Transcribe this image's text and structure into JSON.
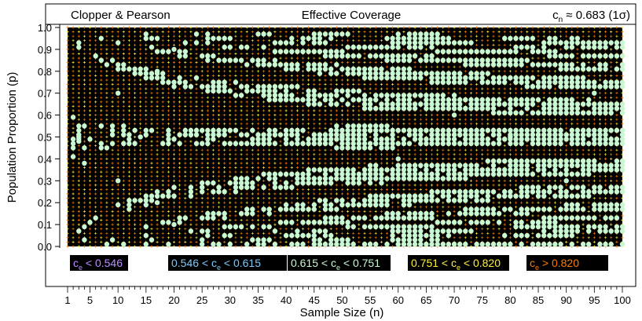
{
  "header": {
    "left": "Clopper & Pearson",
    "center": "Effective Coverage",
    "right_main": "c",
    "right_sub": "n",
    "right_tail": " ≈ 0.683 (1σ)"
  },
  "chart_data": {
    "type": "scatter",
    "title": "Effective Coverage",
    "method": "Clopper & Pearson",
    "nominal_coverage": "cn ≈ 0.683 (1σ)",
    "xlabel": "Sample Size (n)",
    "ylabel": "Population Proportion (p)",
    "xlim": [
      1,
      100
    ],
    "ylim": [
      0.0,
      1.0
    ],
    "x_ticks": [
      1,
      5,
      10,
      15,
      20,
      25,
      30,
      35,
      40,
      45,
      50,
      55,
      60,
      65,
      70,
      75,
      80,
      85,
      90,
      95,
      100
    ],
    "y_ticks": [
      "0.0",
      "0.1",
      "0.2",
      "0.3",
      "0.4",
      "0.5",
      "0.6",
      "0.7",
      "0.8",
      "0.9",
      "1.0"
    ],
    "grid": {
      "n_step": 1,
      "p_step": 0.01
    },
    "plot_background": "#000000",
    "legend_placement": "bottom",
    "legend": [
      {
        "label": "< 0.546",
        "color": "#b98cff",
        "marker": "grid point",
        "range": [
          0.0,
          0.546
        ]
      },
      {
        "label": "0.546 < ",
        "suffix": " < 0.615",
        "color": "#7fc8f5",
        "marker": "grid point",
        "range": [
          0.546,
          0.615
        ]
      },
      {
        "label": "0.615 < ",
        "suffix": " < 0.751",
        "color": "#c8f7d2",
        "marker": "filled circle",
        "range": [
          0.615,
          0.751
        ]
      },
      {
        "label": "0.751 < ",
        "suffix": " < 0.820",
        "color": "#ffef3a",
        "marker": "+",
        "range": [
          0.751,
          0.82
        ]
      },
      {
        "label": " > 0.820",
        "color": "#ff7a00",
        "marker": "+",
        "range": [
          0.82,
          1.0
        ]
      }
    ],
    "legend_symbol": "c",
    "legend_symbol_sub": "e",
    "series": [
      {
        "name": "0.615 < ce < 0.751",
        "color": "#c8f7d2",
        "description": "clusters of mint circles forming nested arcs opening right, denser toward large n",
        "approx_points_sample": [
          [
            3,
            0.5
          ],
          [
            3,
            0.48
          ],
          [
            4,
            0.38
          ],
          [
            7,
            0.45
          ],
          [
            7,
            0.55
          ],
          [
            10,
            0.3
          ],
          [
            10,
            0.7
          ],
          [
            14,
            0.5
          ],
          [
            17,
            0.2
          ],
          [
            17,
            0.8
          ],
          [
            20,
            0.1
          ],
          [
            20,
            0.9
          ],
          [
            50,
            0.5
          ],
          [
            60,
            0.4
          ],
          [
            70,
            0.6
          ],
          [
            80,
            0.5
          ],
          [
            90,
            0.3
          ],
          [
            95,
            0.7
          ]
        ]
      }
    ]
  }
}
